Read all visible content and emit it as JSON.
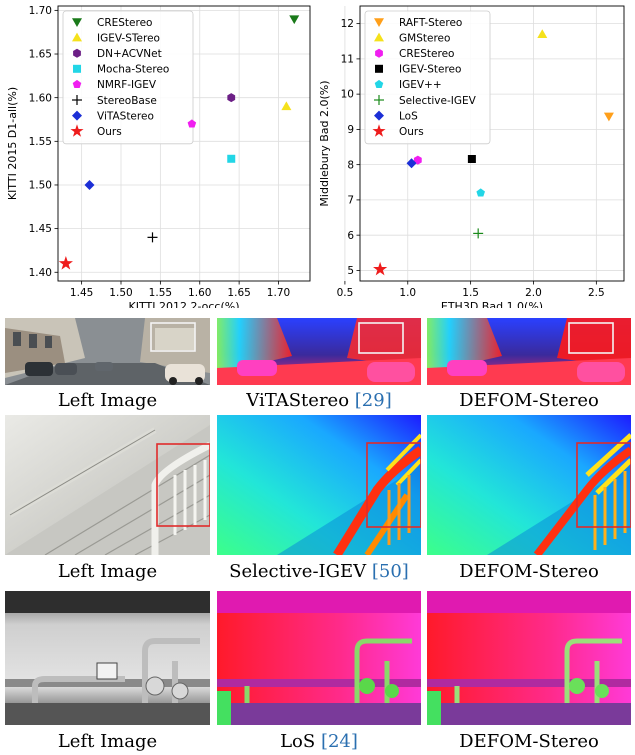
{
  "chart_data": [
    {
      "type": "scatter",
      "xlabel": "KITTI 2012 2-occ(%)",
      "ylabel": "KITTI 2015 D1-all(%)",
      "xlim": [
        1.42,
        1.74
      ],
      "ylim": [
        1.39,
        1.705
      ],
      "xticks": [
        "1.45",
        "1.50",
        "1.55",
        "1.60",
        "1.65",
        "1.70"
      ],
      "yticks": [
        "1.40",
        "1.45",
        "1.50",
        "1.55",
        "1.60",
        "1.65",
        "1.70"
      ],
      "grid": true,
      "legend_position": "top-left",
      "series": [
        {
          "name": "CREStereo",
          "x": [
            1.72
          ],
          "y": [
            1.69
          ],
          "marker": "triangle-down",
          "color": "#1a7a1a"
        },
        {
          "name": "IGEV-STereo",
          "x": [
            1.71
          ],
          "y": [
            1.59
          ],
          "marker": "triangle-up",
          "color": "#f5e11b"
        },
        {
          "name": "DN+ACVNet",
          "x": [
            1.64
          ],
          "y": [
            1.6
          ],
          "marker": "hexagon",
          "color": "#6c1f86"
        },
        {
          "name": "Mocha-Stereo",
          "x": [
            1.64
          ],
          "y": [
            1.53
          ],
          "marker": "square",
          "color": "#22d6e6"
        },
        {
          "name": "NMRF-IGEV",
          "x": [
            1.59
          ],
          "y": [
            1.57
          ],
          "marker": "pentagon",
          "color": "#f01ef0"
        },
        {
          "name": "StereoBase",
          "x": [
            1.54
          ],
          "y": [
            1.44
          ],
          "marker": "plus",
          "color": "#000000"
        },
        {
          "name": "ViTAStereo",
          "x": [
            1.46
          ],
          "y": [
            1.5
          ],
          "marker": "diamond",
          "color": "#1c2fd6"
        },
        {
          "name": "Ours",
          "x": [
            1.43
          ],
          "y": [
            1.41
          ],
          "marker": "star",
          "color": "#ee1c1c"
        }
      ]
    },
    {
      "type": "scatter",
      "xlabel": "ETH3D Bad 1.0(%)",
      "ylabel": "Middlebury Bad 2.0(%)",
      "xlim": [
        0.62,
        2.72
      ],
      "ylim": [
        4.7,
        12.5
      ],
      "xticks": [
        "0.5",
        "1.0",
        "1.5",
        "2.0",
        "2.5"
      ],
      "yticks": [
        "5",
        "6",
        "7",
        "8",
        "9",
        "10",
        "11",
        "12"
      ],
      "grid": true,
      "legend_position": "top-left",
      "series": [
        {
          "name": "RAFT-Stereo",
          "x": [
            2.6
          ],
          "y": [
            9.37
          ],
          "marker": "triangle-down",
          "color": "#ff9f1a"
        },
        {
          "name": "GMStereo",
          "x": [
            2.07
          ],
          "y": [
            11.7
          ],
          "marker": "triangle-up",
          "color": "#f5e11b"
        },
        {
          "name": "CREStereo",
          "x": [
            1.08
          ],
          "y": [
            8.13
          ],
          "marker": "hexagon",
          "color": "#f01ef0"
        },
        {
          "name": "IGEV-Stereo",
          "x": [
            1.51
          ],
          "y": [
            8.16
          ],
          "marker": "square",
          "color": "#000000"
        },
        {
          "name": "IGEV++",
          "x": [
            1.58
          ],
          "y": [
            7.2
          ],
          "marker": "pentagon",
          "color": "#22d6e6"
        },
        {
          "name": "Selective-IGEV",
          "x": [
            1.56
          ],
          "y": [
            6.05
          ],
          "marker": "plus",
          "color": "#1a8a1a"
        },
        {
          "name": "LoS",
          "x": [
            1.03
          ],
          "y": [
            8.04
          ],
          "marker": "diamond",
          "color": "#1c2fd6"
        },
        {
          "name": "Ours",
          "x": [
            0.78
          ],
          "y": [
            5.03
          ],
          "marker": "star",
          "color": "#ee1c1c"
        }
      ]
    }
  ],
  "figure_rows": [
    {
      "images": [
        "street-left",
        "street-vitastereo",
        "street-defom"
      ],
      "captions": [
        {
          "text": "Left Image",
          "cite": ""
        },
        {
          "text": "ViTAStereo ",
          "cite": "[29]"
        },
        {
          "text": "DEFOM-Stereo",
          "cite": ""
        }
      ]
    },
    {
      "images": [
        "stairs-left",
        "stairs-selective",
        "stairs-defom"
      ],
      "captions": [
        {
          "text": "Left Image",
          "cite": ""
        },
        {
          "text": "Selective-IGEV ",
          "cite": "[50]"
        },
        {
          "text": "DEFOM-Stereo",
          "cite": ""
        }
      ]
    },
    {
      "images": [
        "pipes-left",
        "pipes-los",
        "pipes-defom"
      ],
      "captions": [
        {
          "text": "Left Image",
          "cite": ""
        },
        {
          "text": "LoS ",
          "cite": "[24]"
        },
        {
          "text": "DEFOM-Stereo",
          "cite": ""
        }
      ]
    }
  ]
}
